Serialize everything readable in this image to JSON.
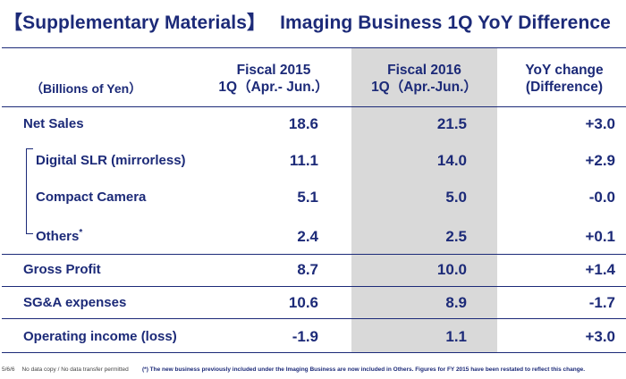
{
  "title": {
    "prefix": "【Supplementary Materials】",
    "main": "Imaging Business 1Q YoY Difference"
  },
  "header": {
    "units": "（Billions of Yen）",
    "col1_line1": "Fiscal 2015",
    "col1_line2": "1Q（Apr.- Jun.）",
    "col2_line1": "Fiscal 2016",
    "col2_line2": "1Q（Apr.-Jun.）",
    "col3_line1": "YoY change",
    "col3_line2": "(Difference)"
  },
  "rows": [
    {
      "label": "Net Sales",
      "fy2015": "18.6",
      "fy2016": "21.5",
      "yoy": "+3.0"
    },
    {
      "label": "Digital SLR (mirrorless)",
      "fy2015": "11.1",
      "fy2016": "14.0",
      "yoy": "+2.9"
    },
    {
      "label": "Compact Camera",
      "fy2015": "5.1",
      "fy2016": "5.0",
      "yoy": "-0.0"
    },
    {
      "label": "Others",
      "marker": "*",
      "fy2015": "2.4",
      "fy2016": "2.5",
      "yoy": "+0.1"
    },
    {
      "label": "Gross Profit",
      "fy2015": "8.7",
      "fy2016": "10.0",
      "yoy": "+1.4"
    },
    {
      "label": "SG&A expenses",
      "fy2015": "10.6",
      "fy2016": "8.9",
      "yoy": "-1.7"
    },
    {
      "label": "Operating income (loss)",
      "fy2015": "-1.9",
      "fy2016": "1.1",
      "yoy": "+3.0"
    }
  ],
  "footer": {
    "page": "5/6/6",
    "notice": "No data copy / No data transfer permitted",
    "footnote": "(*) The new business previously included under the Imaging Business are now included in Others. Figures for FY 2015 have been restated to reflect this change."
  }
}
